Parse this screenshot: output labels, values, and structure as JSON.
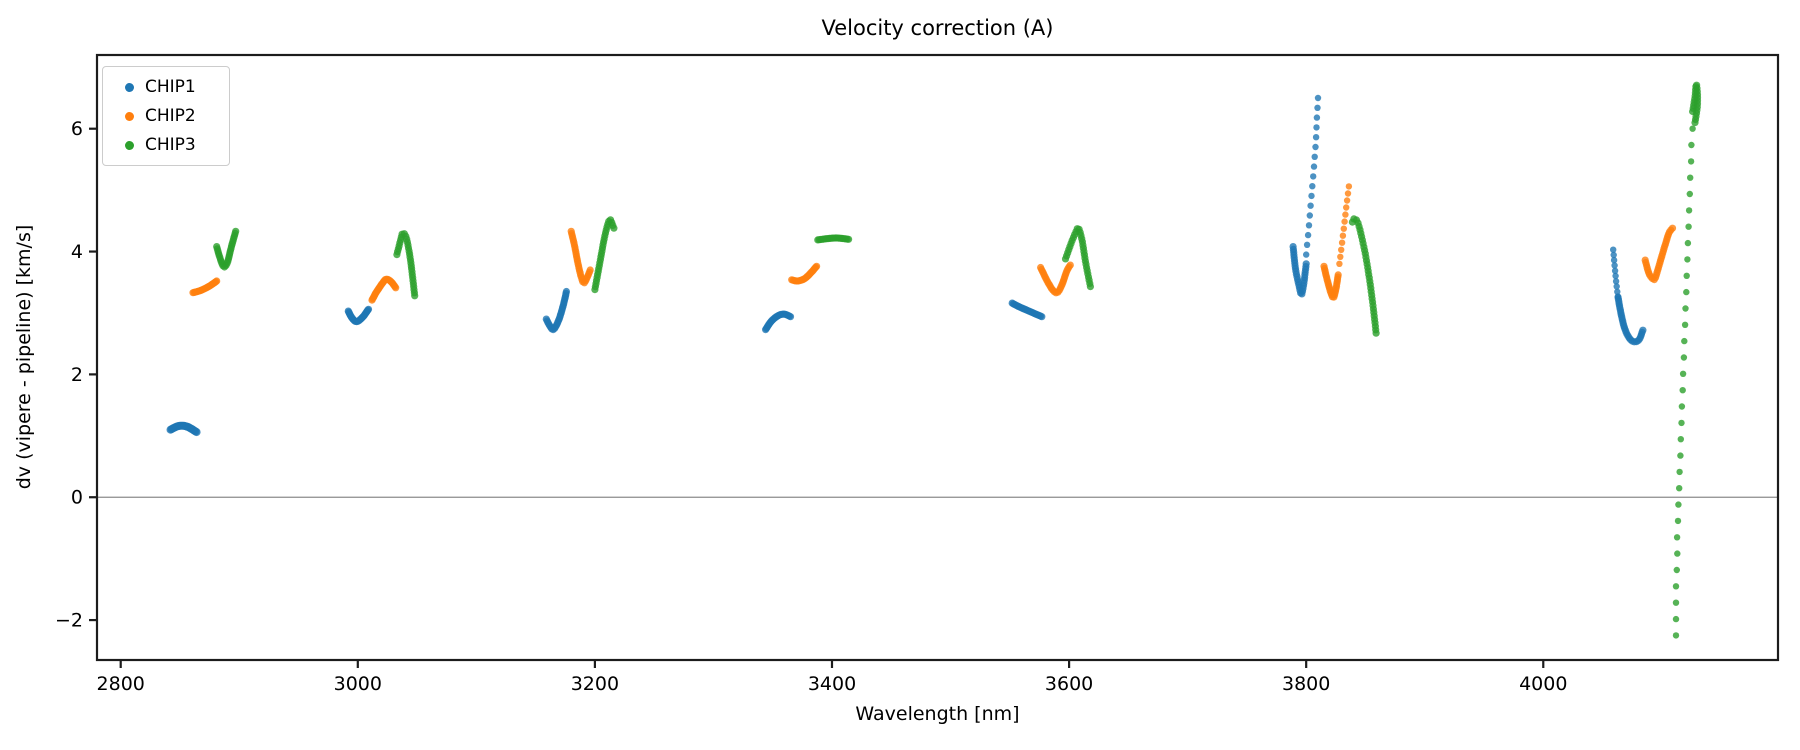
{
  "chart_data": {
    "type": "scatter",
    "title": "Velocity correction (A)",
    "xlabel": "Wavelength [nm]",
    "ylabel": "dv (vipere - pipeline) [km/s]",
    "xlim": [
      2780,
      4198
    ],
    "ylim": [
      -2.65,
      7.2
    ],
    "xticks": [
      2800,
      3000,
      3200,
      3400,
      3600,
      3800,
      4000
    ],
    "yticks": [
      -2,
      0,
      2,
      4,
      6
    ],
    "zero_line_y": 0,
    "grid": "off",
    "colors": {
      "spine": "#1c1c1c",
      "zero_line": "#8c8c8c",
      "background": "#ffffff"
    },
    "legend": {
      "position": "upper-left",
      "entries": [
        {
          "label": "CHIP1",
          "color": "#1f77b4"
        },
        {
          "label": "CHIP2",
          "color": "#ff7f0e"
        },
        {
          "label": "CHIP3",
          "color": "#2ca02c"
        }
      ]
    },
    "series": [
      {
        "name": "CHIP1",
        "color": "#1f77b4",
        "segments": [
          {
            "points": [
              [
                2842,
                1.1
              ],
              [
                2849,
                1.16
              ],
              [
                2856,
                1.15
              ],
              [
                2864,
                1.06
              ]
            ],
            "n": 26,
            "r": 4.0
          },
          {
            "points": [
              [
                2992,
                3.03
              ],
              [
                2995,
                2.92
              ],
              [
                2999,
                2.86
              ],
              [
                3004,
                2.93
              ],
              [
                3009,
                3.06
              ]
            ],
            "n": 28,
            "r": 3.6
          },
          {
            "points": [
              [
                3159,
                2.9
              ],
              [
                3162,
                2.79
              ],
              [
                3165,
                2.73
              ],
              [
                3169,
                2.86
              ],
              [
                3173,
                3.1
              ],
              [
                3176,
                3.35
              ]
            ],
            "n": 30,
            "r": 3.6
          },
          {
            "points": [
              [
                3344,
                2.73
              ],
              [
                3349,
                2.87
              ],
              [
                3355,
                2.96
              ],
              [
                3360,
                2.98
              ],
              [
                3365,
                2.94
              ]
            ],
            "n": 26,
            "r": 3.6
          },
          {
            "points": [
              [
                3552,
                3.16
              ],
              [
                3558,
                3.1
              ],
              [
                3565,
                3.04
              ],
              [
                3571,
                2.99
              ],
              [
                3577,
                2.94
              ]
            ],
            "n": 26,
            "r": 3.6
          },
          {
            "points": [
              [
                3789,
                4.08
              ],
              [
                3791,
                3.72
              ],
              [
                3794,
                3.44
              ],
              [
                3796,
                3.3
              ],
              [
                3798,
                3.48
              ],
              [
                3800,
                3.8
              ]
            ],
            "n": 30,
            "r": 3.6
          },
          {
            "points": [
              [
                3800,
                3.95
              ],
              [
                3802,
                4.35
              ],
              [
                3804,
                4.8
              ],
              [
                3806,
                5.25
              ],
              [
                3808,
                5.75
              ],
              [
                3809,
                6.15
              ],
              [
                3810,
                6.5
              ]
            ],
            "n": 17,
            "r": 3.2
          },
          {
            "points": [
              [
                4059,
                4.03
              ],
              [
                4060,
                3.8
              ],
              [
                4061,
                3.6
              ],
              [
                4062,
                3.42
              ],
              [
                4063,
                3.26
              ]
            ],
            "n": 10,
            "r": 3.2
          },
          {
            "points": [
              [
                4063,
                3.26
              ],
              [
                4066,
                2.95
              ],
              [
                4069,
                2.73
              ],
              [
                4073,
                2.58
              ],
              [
                4077,
                2.53
              ],
              [
                4081,
                2.57
              ],
              [
                4084,
                2.72
              ]
            ],
            "n": 30,
            "r": 3.6
          }
        ]
      },
      {
        "name": "CHIP2",
        "color": "#ff7f0e",
        "segments": [
          {
            "points": [
              [
                2861,
                3.33
              ],
              [
                2868,
                3.37
              ],
              [
                2875,
                3.44
              ],
              [
                2881,
                3.52
              ]
            ],
            "n": 24,
            "r": 3.6
          },
          {
            "points": [
              [
                3012,
                3.21
              ],
              [
                3016,
                3.35
              ],
              [
                3021,
                3.49
              ],
              [
                3024,
                3.55
              ],
              [
                3028,
                3.51
              ],
              [
                3032,
                3.41
              ]
            ],
            "n": 28,
            "r": 3.6
          },
          {
            "points": [
              [
                3180,
                4.33
              ],
              [
                3183,
                4.08
              ],
              [
                3186,
                3.78
              ],
              [
                3189,
                3.55
              ],
              [
                3191,
                3.49
              ],
              [
                3194,
                3.6
              ],
              [
                3196,
                3.7
              ]
            ],
            "n": 30,
            "r": 3.6
          },
          {
            "points": [
              [
                3366,
                3.54
              ],
              [
                3371,
                3.52
              ],
              [
                3377,
                3.56
              ],
              [
                3382,
                3.65
              ],
              [
                3387,
                3.76
              ]
            ],
            "n": 24,
            "r": 3.6
          },
          {
            "points": [
              [
                3576,
                3.74
              ],
              [
                3581,
                3.54
              ],
              [
                3586,
                3.38
              ],
              [
                3590,
                3.33
              ],
              [
                3594,
                3.46
              ],
              [
                3598,
                3.68
              ],
              [
                3601,
                3.78
              ]
            ],
            "n": 30,
            "r": 3.6
          },
          {
            "points": [
              [
                3815,
                3.76
              ],
              [
                3818,
                3.52
              ],
              [
                3821,
                3.32
              ],
              [
                3823,
                3.25
              ],
              [
                3825,
                3.38
              ],
              [
                3827,
                3.62
              ]
            ],
            "n": 26,
            "r": 3.6
          },
          {
            "points": [
              [
                3828,
                3.8
              ],
              [
                3830,
                4.1
              ],
              [
                3832,
                4.42
              ],
              [
                3834,
                4.75
              ],
              [
                3836,
                5.06
              ]
            ],
            "n": 12,
            "r": 3.2
          },
          {
            "points": [
              [
                4086,
                3.86
              ],
              [
                4089,
                3.65
              ],
              [
                4092,
                3.56
              ],
              [
                4094,
                3.55
              ],
              [
                4096,
                3.66
              ],
              [
                4099,
                3.86
              ],
              [
                4103,
                4.12
              ],
              [
                4106,
                4.3
              ],
              [
                4109,
                4.38
              ]
            ],
            "n": 32,
            "r": 3.6
          }
        ]
      },
      {
        "name": "CHIP3",
        "color": "#2ca02c",
        "segments": [
          {
            "points": [
              [
                2881,
                4.08
              ],
              [
                2884,
                3.88
              ],
              [
                2887,
                3.75
              ],
              [
                2890,
                3.82
              ],
              [
                2893,
                4.05
              ],
              [
                2897,
                4.33
              ]
            ],
            "n": 28,
            "r": 3.6
          },
          {
            "points": [
              [
                3033,
                3.95
              ],
              [
                3036,
                4.18
              ],
              [
                3038,
                4.3
              ],
              [
                3041,
                4.22
              ],
              [
                3044,
                3.92
              ],
              [
                3046,
                3.62
              ],
              [
                3048,
                3.28
              ]
            ],
            "n": 30,
            "r": 3.6
          },
          {
            "points": [
              [
                3200,
                3.38
              ],
              [
                3204,
                3.8
              ],
              [
                3208,
                4.22
              ],
              [
                3211,
                4.45
              ],
              [
                3213,
                4.52
              ],
              [
                3216,
                4.38
              ]
            ],
            "n": 28,
            "r": 3.6
          },
          {
            "points": [
              [
                3388,
                4.19
              ],
              [
                3396,
                4.21
              ],
              [
                3404,
                4.22
              ],
              [
                3414,
                4.2
              ]
            ],
            "n": 22,
            "r": 3.6
          },
          {
            "points": [
              [
                3597,
                3.88
              ],
              [
                3602,
                4.15
              ],
              [
                3606,
                4.33
              ],
              [
                3608,
                4.38
              ],
              [
                3611,
                4.18
              ],
              [
                3614,
                3.82
              ],
              [
                3618,
                3.43
              ]
            ],
            "n": 30,
            "r": 3.6
          },
          {
            "points": [
              [
                3839,
                4.48
              ],
              [
                3841,
                4.54
              ],
              [
                3844,
                4.45
              ],
              [
                3847,
                4.22
              ],
              [
                3850,
                3.95
              ],
              [
                3853,
                3.6
              ],
              [
                3856,
                3.18
              ],
              [
                3859,
                2.67
              ]
            ],
            "n": 36,
            "r": 3.6
          },
          {
            "points": [
              [
                4126,
                6.28
              ],
              [
                4128,
                6.52
              ],
              [
                4129,
                6.72
              ],
              [
                4130,
                6.58
              ],
              [
                4130,
                6.38
              ],
              [
                4129,
                6.22
              ],
              [
                4128,
                6.1
              ]
            ],
            "n": 22,
            "r": 3.6
          },
          {
            "points": [
              [
                4126,
                6.0
              ],
              [
                4125,
                5.8
              ],
              [
                4125,
                5.55
              ],
              [
                4124,
                5.3
              ],
              [
                4124,
                5.05
              ],
              [
                4123,
                4.78
              ],
              [
                4123,
                4.52
              ],
              [
                4122,
                4.25
              ],
              [
                4122,
                3.98
              ],
              [
                4121,
                3.72
              ],
              [
                4121,
                3.45
              ],
              [
                4120,
                3.18
              ],
              [
                4120,
                2.92
              ],
              [
                4119,
                2.65
              ],
              [
                4119,
                2.38
              ],
              [
                4118,
                2.12
              ],
              [
                4118,
                1.85
              ],
              [
                4117,
                1.58
              ],
              [
                4117,
                1.32
              ],
              [
                4116,
                1.05
              ],
              [
                4116,
                0.78
              ],
              [
                4115,
                0.52
              ],
              [
                4115,
                0.25
              ],
              [
                4114,
                -0.02
              ],
              [
                4114,
                -0.28
              ],
              [
                4113,
                -0.55
              ],
              [
                4113,
                -0.82
              ],
              [
                4113,
                -1.08
              ],
              [
                4112,
                -1.35
              ],
              [
                4112,
                -1.62
              ],
              [
                4112,
                -1.88
              ],
              [
                4112,
                -2.25
              ]
            ],
            "n": 32,
            "r": 3.2
          }
        ]
      }
    ]
  }
}
